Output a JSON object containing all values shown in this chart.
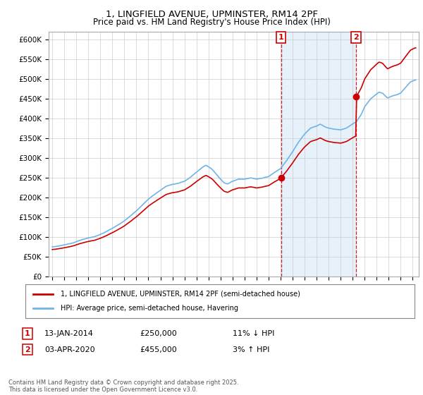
{
  "title": "1, LINGFIELD AVENUE, UPMINSTER, RM14 2PF",
  "subtitle": "Price paid vs. HM Land Registry's House Price Index (HPI)",
  "ylabel_ticks": [
    "£0",
    "£50K",
    "£100K",
    "£150K",
    "£200K",
    "£250K",
    "£300K",
    "£350K",
    "£400K",
    "£450K",
    "£500K",
    "£550K",
    "£600K"
  ],
  "ylim": [
    0,
    620000
  ],
  "ytick_values": [
    0,
    50000,
    100000,
    150000,
    200000,
    250000,
    300000,
    350000,
    400000,
    450000,
    500000,
    550000,
    600000
  ],
  "hpi_color": "#6EB4E8",
  "hpi_fill_color": "#D6E8F7",
  "price_color": "#CC0000",
  "sale1_year": 2014.04,
  "sale1_price": 250000,
  "sale2_year": 2020.27,
  "sale2_price": 455000,
  "legend_label1": "1, LINGFIELD AVENUE, UPMINSTER, RM14 2PF (semi-detached house)",
  "legend_label2": "HPI: Average price, semi-detached house, Havering",
  "footer": "Contains HM Land Registry data © Crown copyright and database right 2025.\nThis data is licensed under the Open Government Licence v3.0.",
  "background_color": "#ffffff",
  "grid_color": "#cccccc",
  "hpi_linewidth": 1.2,
  "price_linewidth": 1.2,
  "xlim_left": 1994.7,
  "xlim_right": 2025.5
}
